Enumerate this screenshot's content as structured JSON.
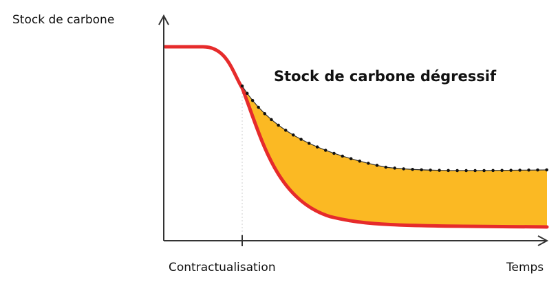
{
  "y_axis_label": "Stock de carbone",
  "area_label": "Stock de carbone dégressif",
  "x_marker_label": "Contractualisation",
  "x_axis_label": "Temps"
}
